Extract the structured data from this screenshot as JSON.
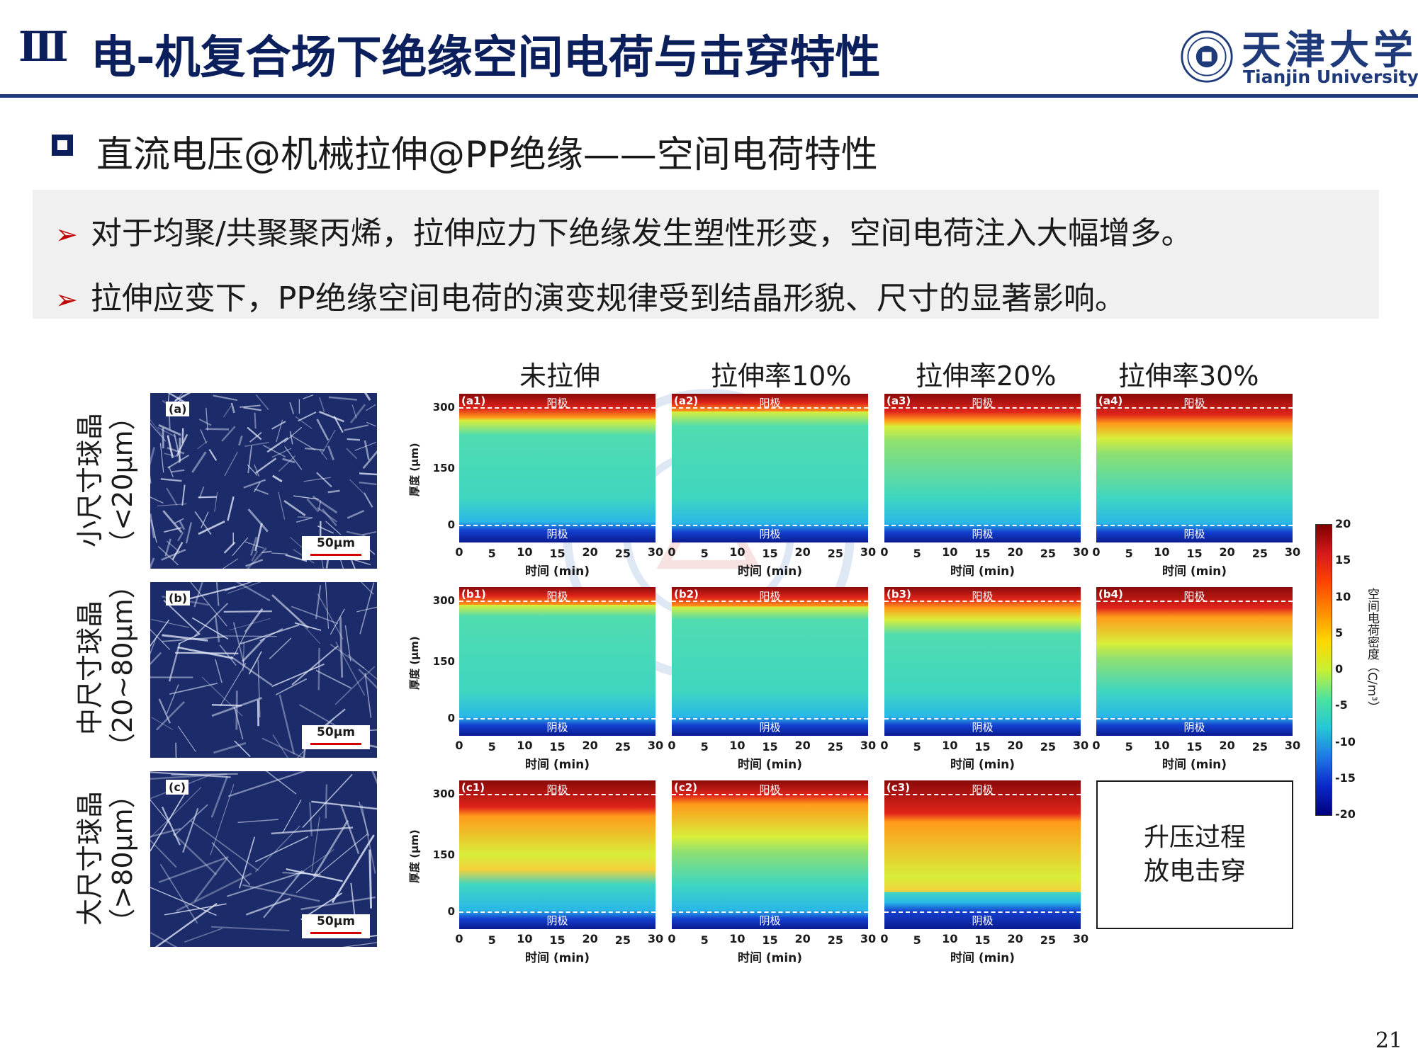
{
  "header": {
    "section_num": "Ⅲ",
    "title": "电-机复合场下绝缘空间电荷与击穿特性",
    "logo_cn": "天津大学",
    "logo_en": "Tianjin University"
  },
  "section": {
    "title": "直流电压@机械拉伸@PP绝缘——空间电荷特性"
  },
  "bullets": [
    "对于均聚/共聚聚丙烯，拉伸应力下绝缘发生塑性形变，空间电荷注入大幅增多。",
    "拉伸应变下，PP绝缘空间电荷的演变规律受到结晶形貌、尺寸的显著影响。"
  ],
  "columns": [
    "未拉伸",
    "拉伸率10%",
    "拉伸率20%",
    "拉伸率30%"
  ],
  "rows": [
    {
      "label_line1": "小尺寸球晶",
      "label_line2": "（<20μm）",
      "micro_tag": "(a)",
      "scale": "50μm"
    },
    {
      "label_line1": "中尺寸球晶",
      "label_line2": "（20~80μm）",
      "micro_tag": "(b)",
      "scale": "50μm"
    },
    {
      "label_line1": "大尺寸球晶",
      "label_line2": "（>80μm）",
      "micro_tag": "(c)",
      "scale": "50μm"
    }
  ],
  "heatmap_common": {
    "anode": "阳极",
    "cathode": "阴极",
    "xlabel": "时间 (min)",
    "ylabel": "厚度 (μm)",
    "x_ticks": [
      "0",
      "5",
      "10",
      "15",
      "20",
      "25",
      "30"
    ],
    "y_ticks": [
      "300",
      "150",
      "0"
    ]
  },
  "heatmaps": [
    {
      "tag": "(a1)"
    },
    {
      "tag": "(a2)"
    },
    {
      "tag": "(a3)"
    },
    {
      "tag": "(a4)"
    },
    {
      "tag": "(b1)"
    },
    {
      "tag": "(b2)"
    },
    {
      "tag": "(b3)"
    },
    {
      "tag": "(b4)"
    },
    {
      "tag": "(c1)"
    },
    {
      "tag": "(c2)"
    },
    {
      "tag": "(c3)"
    }
  ],
  "empty_panel": {
    "line1": "升压过程",
    "line2": "放电击穿"
  },
  "colorbar": {
    "ticks": [
      "20",
      "15",
      "10",
      "5",
      "0",
      "-5",
      "-10",
      "-15",
      "-20"
    ],
    "label": "空间电荷密度（C/m³）"
  },
  "page_number": "21"
}
